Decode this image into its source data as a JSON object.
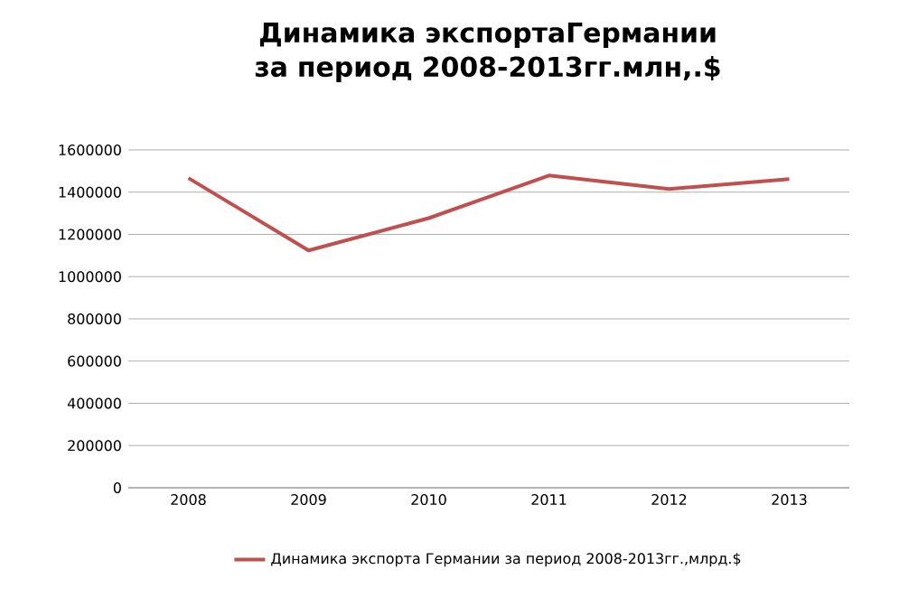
{
  "chart_data": {
    "type": "line",
    "title": "Динамика экспортаГермании за период 2008-2013гг.млн,.$",
    "categories": [
      "2008",
      "2009",
      "2010",
      "2011",
      "2012",
      "2013"
    ],
    "series": [
      {
        "name": "Динамика экспорта Германии за период 2008-2013гг.,млрд.$",
        "color": "#c0504d",
        "values": [
          1467000,
          1124000,
          1277000,
          1479000,
          1415000,
          1462000
        ]
      }
    ],
    "ylim": [
      0,
      1600000
    ],
    "yticks": [
      0,
      200000,
      400000,
      600000,
      800000,
      1000000,
      1200000,
      1400000,
      1600000
    ],
    "grid": "y",
    "legend": "bottom",
    "marker": "none",
    "line_style": "solid"
  }
}
